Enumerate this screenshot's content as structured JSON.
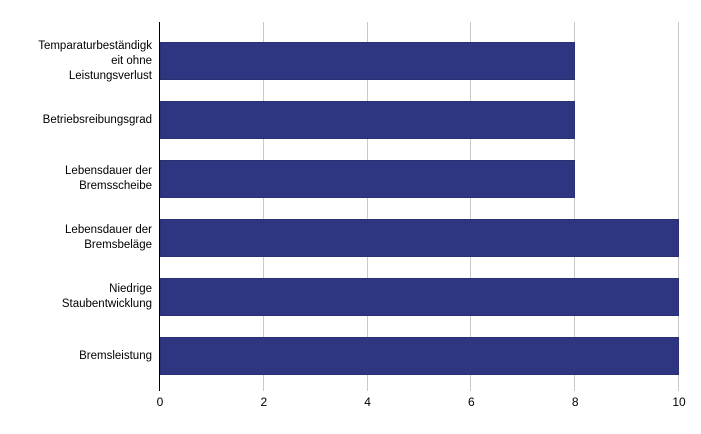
{
  "chart_data": {
    "type": "bar",
    "orientation": "horizontal",
    "title": "",
    "xlabel": "",
    "ylabel": "",
    "categories": [
      "Temparaturbeständigkeit ohne Leistungsverlust",
      "Betriebsreibungsgrad",
      "Lebensdauer der Bremsscheibe",
      "Lebensdauer der Bremsbeläge",
      "Niedrige Staubentwicklung",
      "Bremsleistung"
    ],
    "category_label_lines": [
      [
        "Temparaturbeständigk",
        "eit ohne",
        "Leistungsverlust"
      ],
      [
        "Betriebsreibungsgrad"
      ],
      [
        "Lebensdauer der",
        "Bremsscheibe"
      ],
      [
        "Lebensdauer der",
        "Bremsbeläge"
      ],
      [
        "Niedrige",
        "Staubentwicklung"
      ],
      [
        "Bremsleistung"
      ]
    ],
    "values": [
      8,
      8,
      8,
      10,
      10,
      10
    ],
    "xlim": [
      0,
      10
    ],
    "xticks": [
      0,
      2,
      4,
      6,
      8,
      10
    ],
    "grid": true,
    "legend": false,
    "colors": {
      "bar": "#2e3681",
      "bar_border": "#2a3072",
      "gridline": "#c9c9c9",
      "axis": "#000000",
      "text": "#000000",
      "background": "#ffffff"
    }
  }
}
